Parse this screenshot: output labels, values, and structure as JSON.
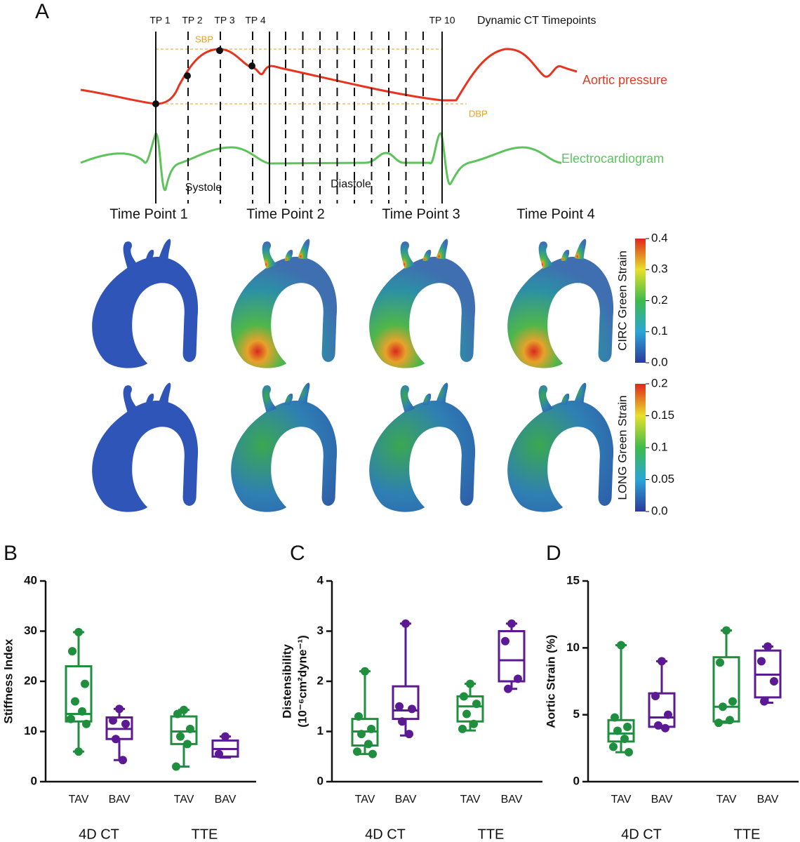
{
  "panel_a": {
    "letter": "A",
    "timepoint_markers": [
      "TP 1",
      "TP 2",
      "TP 3",
      "TP 4",
      "TP 10"
    ],
    "header": "Dynamic CT Timepoints",
    "sbp": "SBP",
    "dbp": "DBP",
    "pressure_label": "Aortic pressure",
    "ecg_label": "Electrocardiogram",
    "phases": [
      "Systole",
      "Diastole"
    ],
    "columns": [
      "Time Point 1",
      "Time Point 2",
      "Time Point 3",
      "Time Point 4"
    ],
    "colorbars": [
      {
        "label": "CIRC Green Strain",
        "ylim": [
          0,
          0.4
        ],
        "yticks": [
          {
            "value": 0,
            "label": "0.0"
          },
          0.1,
          0.2,
          0.3,
          0.4
        ]
      },
      {
        "label": "LONG Green Strain",
        "ylim": [
          0,
          0.2
        ],
        "yticks": [
          {
            "value": 0,
            "label": "0.0"
          },
          0.05,
          0.1,
          0.15,
          0.2
        ]
      }
    ]
  },
  "chart_data": [
    {
      "type": "box",
      "panel": "B",
      "ylabel": [
        "Stiffness Index"
      ],
      "ylim": [
        0,
        40
      ],
      "yticks": [
        0,
        10,
        20,
        30,
        40
      ],
      "groups": [
        {
          "label": "4D CT",
          "boxes": [
            {
              "label": "TAV",
              "color": "#1f8f3f",
              "min": 6,
              "q1": 12,
              "median": 13.5,
              "q3": 23,
              "max": 29.8,
              "points": [
                29.8,
                26,
                19.5,
                16,
                14,
                12.5,
                11.5,
                6
              ]
            },
            {
              "label": "BAV",
              "color": "#5b1a94",
              "min": 4.3,
              "q1": 8.5,
              "median": 10.5,
              "q3": 12.8,
              "max": 14.5,
              "points": [
                14.5,
                12.2,
                11.5,
                8.5,
                4.3
              ]
            }
          ]
        },
        {
          "label": "TTE",
          "boxes": [
            {
              "label": "TAV",
              "color": "#1f8f3f",
              "min": 3,
              "q1": 7.5,
              "median": 10,
              "q3": 13,
              "max": 14.3,
              "points": [
                14.3,
                13.5,
                10.5,
                9,
                7.5,
                3
              ]
            },
            {
              "label": "BAV",
              "color": "#5b1a94",
              "min": 4.8,
              "q1": 5,
              "median": 6.5,
              "q3": 8.2,
              "max": 9,
              "points": [
                9,
                5.5
              ]
            }
          ]
        }
      ]
    },
    {
      "type": "box",
      "panel": "C",
      "ylabel": [
        "Distensibility",
        "(10⁻⁶cm²dyne⁻¹)"
      ],
      "ylim": [
        0,
        4
      ],
      "yticks": [
        0,
        1,
        2,
        3,
        4
      ],
      "groups": [
        {
          "label": "4D CT",
          "boxes": [
            {
              "label": "TAV",
              "color": "#1f8f3f",
              "min": 0.55,
              "q1": 0.72,
              "median": 1.0,
              "q3": 1.25,
              "max": 2.2,
              "points": [
                2.2,
                1.3,
                1.05,
                0.95,
                0.75,
                0.6,
                0.55
              ]
            },
            {
              "label": "BAV",
              "color": "#5b1a94",
              "min": 0.92,
              "q1": 1.25,
              "median": 1.42,
              "q3": 1.9,
              "max": 3.15,
              "points": [
                3.15,
                1.5,
                1.45,
                1.2,
                0.95
              ]
            }
          ]
        },
        {
          "label": "TTE",
          "boxes": [
            {
              "label": "TAV",
              "color": "#1f8f3f",
              "min": 1.02,
              "q1": 1.2,
              "median": 1.5,
              "q3": 1.7,
              "max": 1.95,
              "points": [
                1.95,
                1.7,
                1.55,
                1.35,
                1.15,
                1.05
              ]
            },
            {
              "label": "BAV",
              "color": "#5b1a94",
              "min": 1.85,
              "q1": 2.0,
              "median": 2.42,
              "q3": 3.0,
              "max": 3.15,
              "points": [
                3.15,
                2.8,
                2.05,
                1.85
              ]
            }
          ]
        }
      ]
    },
    {
      "type": "box",
      "panel": "D",
      "ylabel": [
        "Aortic Strain (%)"
      ],
      "ylim": [
        0,
        15
      ],
      "yticks": [
        0,
        5,
        10,
        15
      ],
      "groups": [
        {
          "label": "4D CT",
          "boxes": [
            {
              "label": "TAV",
              "color": "#1f8f3f",
              "min": 2.2,
              "q1": 3,
              "median": 3.6,
              "q3": 4.6,
              "max": 10.2,
              "points": [
                10.2,
                4.8,
                4.1,
                3.8,
                3.2,
                2.6,
                2.2
              ]
            },
            {
              "label": "BAV",
              "color": "#5b1a94",
              "min": 4,
              "q1": 4.1,
              "median": 4.8,
              "q3": 6.6,
              "max": 9,
              "points": [
                9,
                6.4,
                5,
                4.2,
                4
              ]
            }
          ]
        },
        {
          "label": "TTE",
          "boxes": [
            {
              "label": "TAV",
              "color": "#1f8f3f",
              "min": 4.4,
              "q1": 4.5,
              "median": 5.6,
              "q3": 9.3,
              "max": 11.3,
              "points": [
                11.3,
                8.9,
                6,
                5.6,
                4.6,
                4.4
              ]
            },
            {
              "label": "BAV",
              "color": "#5b1a94",
              "min": 5.9,
              "q1": 6.3,
              "median": 8,
              "q3": 9.8,
              "max": 10.1,
              "points": [
                10.1,
                9,
                7.5,
                6
              ]
            }
          ]
        }
      ]
    }
  ]
}
